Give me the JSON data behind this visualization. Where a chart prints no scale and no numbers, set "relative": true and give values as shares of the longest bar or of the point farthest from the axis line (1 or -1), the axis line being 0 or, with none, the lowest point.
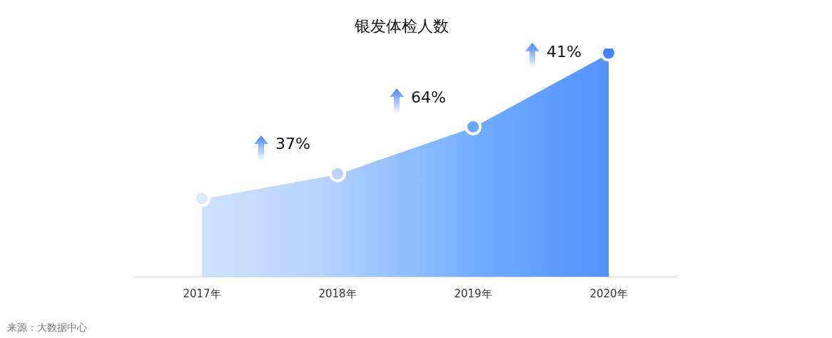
{
  "chart_data": {
    "type": "area",
    "title": "银发体检人数",
    "relative": true,
    "categories": [
      "2017年",
      "2018年",
      "2019年",
      "2020年"
    ],
    "values": [
      0.35,
      0.46,
      0.67,
      1
    ],
    "colors": [
      "#dce9fc",
      "#b9d4fe",
      "#6aa8ff",
      "#4285fe"
    ],
    "marker": "circle",
    "grid": false,
    "legend": false,
    "annotations": [
      "37%",
      "64%",
      "41%",
      "来源：大数据中心"
    ]
  }
}
